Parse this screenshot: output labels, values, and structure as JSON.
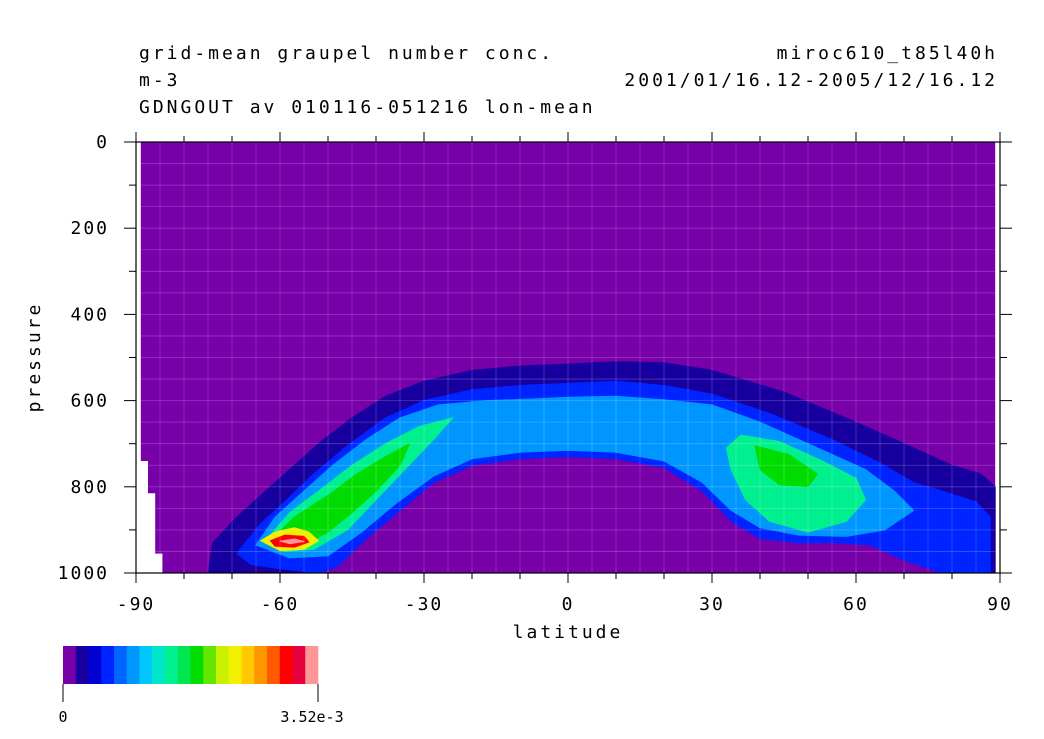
{
  "header": {
    "title": "grid-mean graupel number conc.",
    "units": "m-3",
    "subtitle": "GDNGOUT av 010116-051216 lon-mean",
    "model": "miroc610_t85l40h",
    "period": "2001/01/16.12-2005/12/16.12"
  },
  "chart_data": {
    "type": "heatmap",
    "title": "grid-mean graupel number conc.",
    "xlabel": "latitude",
    "ylabel": "pressure",
    "xlim": [
      -90,
      90
    ],
    "ylim": [
      1000,
      0
    ],
    "x_ticks": [
      "-90",
      "-60",
      "-30",
      "0",
      "30",
      "60",
      "90"
    ],
    "y_ticks": [
      "0",
      "200",
      "400",
      "600",
      "800",
      "1000"
    ],
    "grid": true,
    "colorbar": {
      "min_label": "0",
      "max_label": "3.52e-3",
      "min": 0,
      "max": 0.00352,
      "colors": [
        "#7700a9",
        "#1800a0",
        "#0000d0",
        "#0024ff",
        "#0064ff",
        "#0096ff",
        "#00c8ff",
        "#00e6c8",
        "#00f090",
        "#00e650",
        "#00dc00",
        "#64e600",
        "#c8f000",
        "#f0f000",
        "#ffc800",
        "#ff9600",
        "#ff5a00",
        "#ff0000",
        "#e6003c",
        "#ff9696"
      ]
    },
    "contours": [
      {
        "level": 1,
        "points": [
          [
            -75,
            1000
          ],
          [
            -74,
            930
          ],
          [
            -69,
            870
          ],
          [
            -64,
            820
          ],
          [
            -59,
            770
          ],
          [
            -52,
            700
          ],
          [
            -45,
            640
          ],
          [
            -38,
            590
          ],
          [
            -30,
            555
          ],
          [
            -20,
            530
          ],
          [
            -10,
            520
          ],
          [
            0,
            515
          ],
          [
            10,
            510
          ],
          [
            20,
            512
          ],
          [
            30,
            530
          ],
          [
            45,
            580
          ],
          [
            60,
            650
          ],
          [
            72,
            710
          ],
          [
            80,
            750
          ],
          [
            86,
            770
          ],
          [
            89,
            800
          ],
          [
            89,
            1000
          ],
          [
            80,
            1000
          ],
          [
            72,
            960
          ],
          [
            66,
            900
          ],
          [
            60,
            870
          ],
          [
            50,
            870
          ],
          [
            42,
            870
          ],
          [
            36,
            860
          ],
          [
            32,
            830
          ],
          [
            26,
            760
          ],
          [
            20,
            700
          ],
          [
            10,
            685
          ],
          [
            0,
            685
          ],
          [
            -10,
            690
          ],
          [
            -20,
            700
          ],
          [
            -28,
            740
          ],
          [
            -35,
            810
          ],
          [
            -42,
            880
          ],
          [
            -48,
            950
          ],
          [
            -52,
            1000
          ]
        ]
      },
      {
        "level": 3,
        "points": [
          [
            -69,
            955
          ],
          [
            -64,
            885
          ],
          [
            -59,
            835
          ],
          [
            -53,
            770
          ],
          [
            -46,
            705
          ],
          [
            -38,
            640
          ],
          [
            -30,
            600
          ],
          [
            -20,
            575
          ],
          [
            -10,
            565
          ],
          [
            0,
            560
          ],
          [
            10,
            555
          ],
          [
            20,
            565
          ],
          [
            30,
            585
          ],
          [
            42,
            630
          ],
          [
            55,
            690
          ],
          [
            65,
            745
          ],
          [
            72,
            790
          ],
          [
            78,
            810
          ],
          [
            85,
            835
          ],
          [
            88,
            870
          ],
          [
            88,
            1000
          ],
          [
            78,
            1000
          ],
          [
            70,
            970
          ],
          [
            63,
            935
          ],
          [
            56,
            930
          ],
          [
            48,
            930
          ],
          [
            40,
            920
          ],
          [
            34,
            880
          ],
          [
            28,
            810
          ],
          [
            20,
            755
          ],
          [
            10,
            735
          ],
          [
            0,
            730
          ],
          [
            -10,
            735
          ],
          [
            -20,
            750
          ],
          [
            -28,
            790
          ],
          [
            -35,
            855
          ],
          [
            -42,
            920
          ],
          [
            -48,
            985
          ],
          [
            -52,
            1000
          ],
          [
            -60,
            990
          ],
          [
            -66,
            980
          ]
        ]
      },
      {
        "level": 5,
        "points": [
          [
            -65,
            935
          ],
          [
            -61,
            870
          ],
          [
            -56,
            820
          ],
          [
            -49,
            750
          ],
          [
            -42,
            690
          ],
          [
            -35,
            640
          ],
          [
            -27,
            610
          ],
          [
            -17,
            600
          ],
          [
            -7,
            596
          ],
          [
            0,
            592
          ],
          [
            10,
            590
          ],
          [
            20,
            598
          ],
          [
            30,
            610
          ],
          [
            40,
            650
          ],
          [
            52,
            710
          ],
          [
            62,
            760
          ],
          [
            68,
            810
          ],
          [
            72,
            855
          ],
          [
            66,
            900
          ],
          [
            58,
            915
          ],
          [
            48,
            912
          ],
          [
            40,
            895
          ],
          [
            34,
            855
          ],
          [
            28,
            790
          ],
          [
            20,
            740
          ],
          [
            10,
            720
          ],
          [
            0,
            715
          ],
          [
            -10,
            720
          ],
          [
            -20,
            735
          ],
          [
            -28,
            775
          ],
          [
            -36,
            840
          ],
          [
            -43,
            905
          ],
          [
            -50,
            960
          ],
          [
            -58,
            965
          ]
        ]
      },
      {
        "level": 8,
        "points": [
          [
            -63,
            925
          ],
          [
            -58,
            860
          ],
          [
            -52,
            810
          ],
          [
            -45,
            750
          ],
          [
            -38,
            700
          ],
          [
            -31,
            660
          ],
          [
            -24,
            640
          ],
          [
            -28,
            690
          ],
          [
            -34,
            760
          ],
          [
            -40,
            830
          ],
          [
            -46,
            900
          ],
          [
            -53,
            945
          ],
          [
            -59,
            950
          ]
        ]
      },
      {
        "level": 8,
        "points": [
          [
            36,
            680
          ],
          [
            44,
            695
          ],
          [
            53,
            740
          ],
          [
            60,
            780
          ],
          [
            62,
            830
          ],
          [
            58,
            880
          ],
          [
            50,
            905
          ],
          [
            42,
            880
          ],
          [
            37,
            830
          ],
          [
            34,
            760
          ],
          [
            33,
            710
          ]
        ]
      },
      {
        "level": 10,
        "points": [
          [
            -62,
            925
          ],
          [
            -57,
            870
          ],
          [
            -50,
            820
          ],
          [
            -44,
            770
          ],
          [
            -38,
            730
          ],
          [
            -33,
            700
          ],
          [
            -35,
            750
          ],
          [
            -40,
            810
          ],
          [
            -45,
            860
          ],
          [
            -50,
            905
          ],
          [
            -55,
            935
          ]
        ]
      },
      {
        "level": 10,
        "points": [
          [
            39,
            705
          ],
          [
            46,
            725
          ],
          [
            52,
            770
          ],
          [
            50,
            800
          ],
          [
            44,
            795
          ],
          [
            40,
            760
          ]
        ]
      },
      {
        "level": 13,
        "points": [
          [
            -64,
            925
          ],
          [
            -61,
            905
          ],
          [
            -57,
            895
          ],
          [
            -54,
            905
          ],
          [
            -52,
            925
          ],
          [
            -55,
            945
          ],
          [
            -60,
            948
          ]
        ]
      },
      {
        "level": 17,
        "points": [
          [
            -62,
            925
          ],
          [
            -59,
            912
          ],
          [
            -55,
            915
          ],
          [
            -54,
            928
          ],
          [
            -57,
            940
          ],
          [
            -61,
            938
          ]
        ]
      },
      {
        "level": 19,
        "points": [
          [
            -60,
            926
          ],
          [
            -57,
            921
          ],
          [
            -55,
            927
          ],
          [
            -58,
            932
          ]
        ]
      }
    ]
  }
}
